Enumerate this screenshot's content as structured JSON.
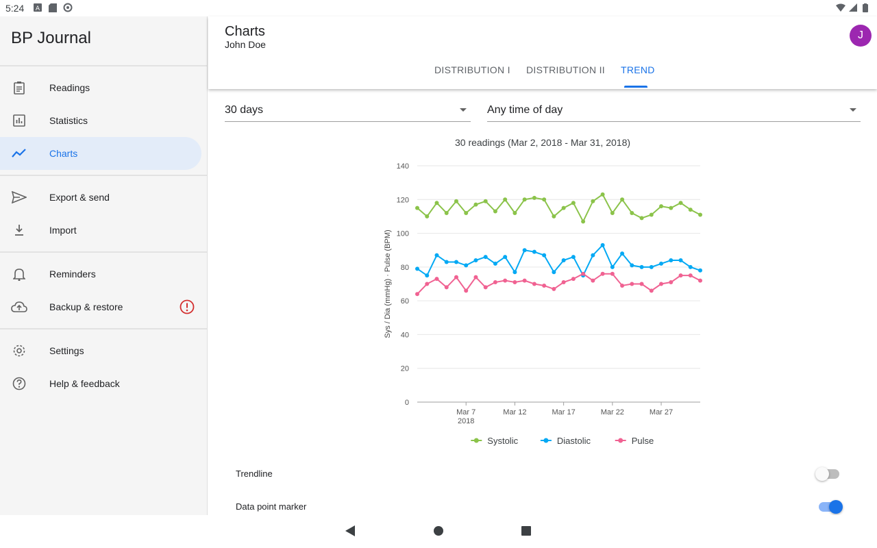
{
  "status": {
    "time": "5:24"
  },
  "app": {
    "title": "BP Journal"
  },
  "sidebar": {
    "items": [
      {
        "label": "Readings",
        "icon": "clipboard-icon"
      },
      {
        "label": "Statistics",
        "icon": "bar-chart-icon"
      },
      {
        "label": "Charts",
        "icon": "trending-icon",
        "active": true
      },
      {
        "label": "Export & send",
        "icon": "send-icon"
      },
      {
        "label": "Import",
        "icon": "download-icon"
      },
      {
        "label": "Reminders",
        "icon": "bell-icon"
      },
      {
        "label": "Backup & restore",
        "icon": "cloud-upload-icon",
        "badge": "warning-icon"
      },
      {
        "label": "Settings",
        "icon": "gear-icon"
      },
      {
        "label": "Help & feedback",
        "icon": "help-icon"
      }
    ]
  },
  "header": {
    "title": "Charts",
    "subtitle": "John Doe",
    "avatar_letter": "J"
  },
  "tabs": [
    {
      "label": "DISTRIBUTION I"
    },
    {
      "label": "DISTRIBUTION II"
    },
    {
      "label": "TREND",
      "active": true
    }
  ],
  "filters": {
    "range": "30 days",
    "time_of_day": "Any time of day"
  },
  "colors": {
    "accent": "#1a73e8",
    "systolic": "#8bc34a",
    "diastolic": "#03a9f4",
    "pulse": "#f06292",
    "avatar": "#9c27b0",
    "warning": "#d32f2f"
  },
  "chart_data": {
    "type": "line",
    "title": "30 readings (Mar 2, 2018 - Mar 31, 2018)",
    "ylabel": "Sys / Dia (mmHg) · Pulse (BPM)",
    "ylim": [
      0,
      140
    ],
    "yticks": [
      0,
      20,
      40,
      60,
      80,
      100,
      120,
      140
    ],
    "x": [
      "2018-03-02",
      "2018-03-03",
      "2018-03-04",
      "2018-03-05",
      "2018-03-06",
      "2018-03-07",
      "2018-03-08",
      "2018-03-09",
      "2018-03-10",
      "2018-03-11",
      "2018-03-12",
      "2018-03-13",
      "2018-03-14",
      "2018-03-15",
      "2018-03-16",
      "2018-03-17",
      "2018-03-18",
      "2018-03-19",
      "2018-03-20",
      "2018-03-21",
      "2018-03-22",
      "2018-03-23",
      "2018-03-24",
      "2018-03-25",
      "2018-03-26",
      "2018-03-27",
      "2018-03-28",
      "2018-03-29",
      "2018-03-30",
      "2018-03-31"
    ],
    "xticks": [
      {
        "index": 5,
        "label": "Mar 7",
        "sub": "2018"
      },
      {
        "index": 10,
        "label": "Mar 12"
      },
      {
        "index": 15,
        "label": "Mar 17"
      },
      {
        "index": 20,
        "label": "Mar 22"
      },
      {
        "index": 25,
        "label": "Mar 27"
      }
    ],
    "series": [
      {
        "name": "Systolic",
        "color": "#8bc34a",
        "values": [
          115,
          110,
          118,
          112,
          119,
          112,
          117,
          119,
          113,
          120,
          112,
          120,
          121,
          120,
          110,
          115,
          118,
          107,
          119,
          123,
          112,
          120,
          112,
          109,
          111,
          116,
          115,
          118,
          114,
          111
        ]
      },
      {
        "name": "Diastolic",
        "color": "#03a9f4",
        "values": [
          79,
          75,
          87,
          83,
          83,
          81,
          84,
          86,
          82,
          86,
          77,
          90,
          89,
          87,
          77,
          84,
          86,
          75,
          87,
          93,
          80,
          88,
          81,
          80,
          80,
          82,
          84,
          84,
          80,
          78
        ]
      },
      {
        "name": "Pulse",
        "color": "#f06292",
        "values": [
          64,
          70,
          73,
          68,
          74,
          66,
          74,
          68,
          71,
          72,
          71,
          72,
          70,
          69,
          67,
          71,
          73,
          76,
          72,
          76,
          76,
          69,
          70,
          70,
          66,
          70,
          71,
          75,
          75,
          72
        ]
      }
    ],
    "legend_position": "bottom",
    "grid": true
  },
  "options": [
    {
      "label": "Trendline",
      "on": false
    },
    {
      "label": "Data point marker",
      "on": true
    }
  ]
}
